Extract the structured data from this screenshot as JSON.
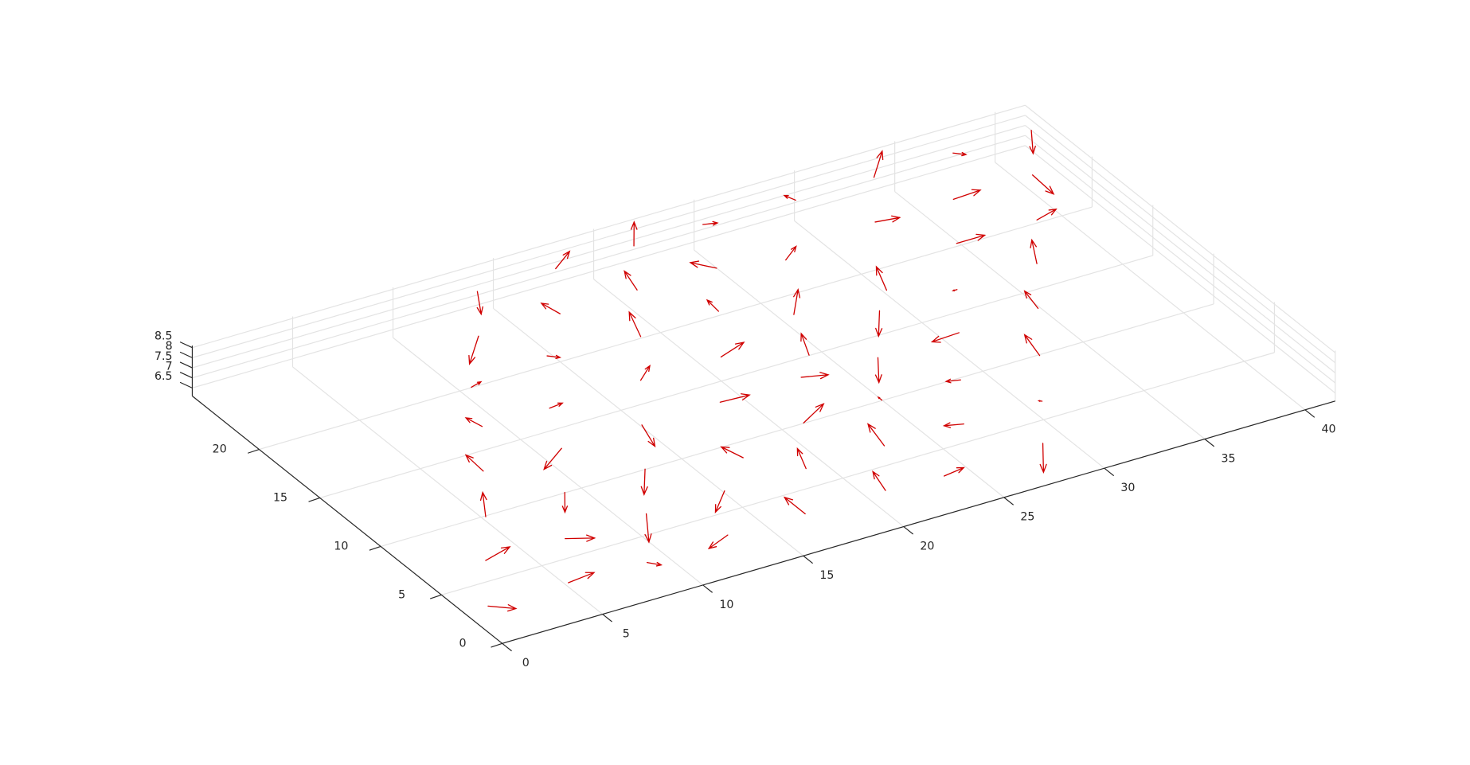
{
  "chart_data": {
    "type": "quiver3",
    "color": "#d00000",
    "grid": true,
    "xlim": [
      0,
      41.5
    ],
    "ylim": [
      0,
      25.5
    ],
    "zlim": [
      6.1,
      8.6
    ],
    "xticks": [
      0,
      5,
      10,
      15,
      20,
      25,
      30,
      35,
      40
    ],
    "yticks": [
      0,
      5,
      10,
      15,
      20
    ],
    "zticks": [
      6.5,
      7,
      7.5,
      8,
      8.5
    ],
    "z": 7.5,
    "x": [
      -0.1,
      3.9,
      7.7,
      5.8,
      1.9,
      3.9,
      7.9,
      9.9,
      11.9,
      13.8,
      15.7,
      11.9,
      9.8,
      5.9,
      16.0,
      17.8,
      19.7,
      22.5,
      27.6,
      25.6,
      21.7,
      19.8,
      17.7,
      13.8,
      7.9,
      11.2,
      9.3,
      13.5,
      15.8,
      19.8,
      21.8,
      23.7,
      27.5,
      29.5,
      31.5,
      29.6,
      27.7,
      25.5,
      23.1,
      24.4,
      21.8,
      17.8,
      15.9,
      11.9,
      13.9,
      17.8,
      21.7,
      19.8,
      23.7,
      26.6,
      28.9,
      31.5,
      33.6,
      35.6,
      33.6,
      31.6,
      25.2,
      29.7,
      35.5,
      39.5,
      37.6,
      33.6,
      37.6,
      41.5
    ],
    "y": [
      1.0,
      1.0,
      0.8,
      4.4,
      4.5,
      7.8,
      7.9,
      4.5,
      1.1,
      4.5,
      1.0,
      7.9,
      11.3,
      11.3,
      6.6,
      4.4,
      1.0,
      0.8,
      1.1,
      4.3,
      4.4,
      7.9,
      11.3,
      11.3,
      14.7,
      14.6,
      17.9,
      18.6,
      14.7,
      14.7,
      11.4,
      7.9,
      7.7,
      4.3,
      7.8,
      11.3,
      14.7,
      11.2,
      12.9,
      16.3,
      18.2,
      18.0,
      21.5,
      21.6,
      25.0,
      25.0,
      25.0,
      21.6,
      21.5,
      20.6,
      16.1,
      14.6,
      11.4,
      14.8,
      18.1,
      21.5,
      25.1,
      24.9,
      21.5,
      21.6,
      18.1,
      24.9,
      25.0,
      25.0
    ],
    "u": [
      0.9,
      1.4,
      0.4,
      1.1,
      1.5,
      1.0,
      -0.9,
      -1.2,
      -1.3,
      -1.3,
      0.0,
      -1.2,
      -1.6,
      0.1,
      -0.3,
      0.6,
      0.4,
      1.1,
      -1.3,
      -0.8,
      0.4,
      1.6,
      1.4,
      -0.5,
      -0.2,
      0.7,
      0.6,
      0.4,
      1.0,
      1.5,
      1.1,
      0.0,
      -0.6,
      -0.1,
      0.4,
      -1.4,
      -1.2,
      -1.1,
      0.7,
      1.3,
      0.1,
      0.7,
      -0.2,
      -1.6,
      -0.9,
      1.3,
      1.1,
      0.4,
      -0.7,
      1.0,
      0.7,
      -0.2,
      0.3,
      0.9,
      1.4,
      1.1,
      0.6,
      -0.2,
      1.4,
      -0.1,
      1.2,
      1.5,
      0.4,
      -1.0
    ],
    "v": [
      -0.8,
      0.2,
      -0.5,
      -0.6,
      0.5,
      1.9,
      -1.5,
      -2.2,
      -0.6,
      -1.4,
      1.7,
      -1.9,
      -1.2,
      1.6,
      1.3,
      1.7,
      1.7,
      0.2,
      -2.2,
      0.3,
      2.0,
      1.0,
      -0.1,
      -1.9,
      1.0,
      0.1,
      0.2,
      -0.4,
      0.9,
      0.6,
      -0.4,
      0.3,
      0.2,
      0.1,
      1.9,
      -0.1,
      -1.9,
      -1.9,
      1.8,
      1.8,
      1.1,
      2.1,
      1.2,
      -1.9,
      -1.8,
      1.0,
      1.8,
      1.7,
      1.0,
      0.8,
      2.0,
      0.0,
      1.6,
      1.9,
      0.0,
      -0.2,
      -0.2,
      0.6,
      0.1,
      -1.9,
      0.4,
      1.8,
      -0.4,
      -1.8
    ]
  }
}
